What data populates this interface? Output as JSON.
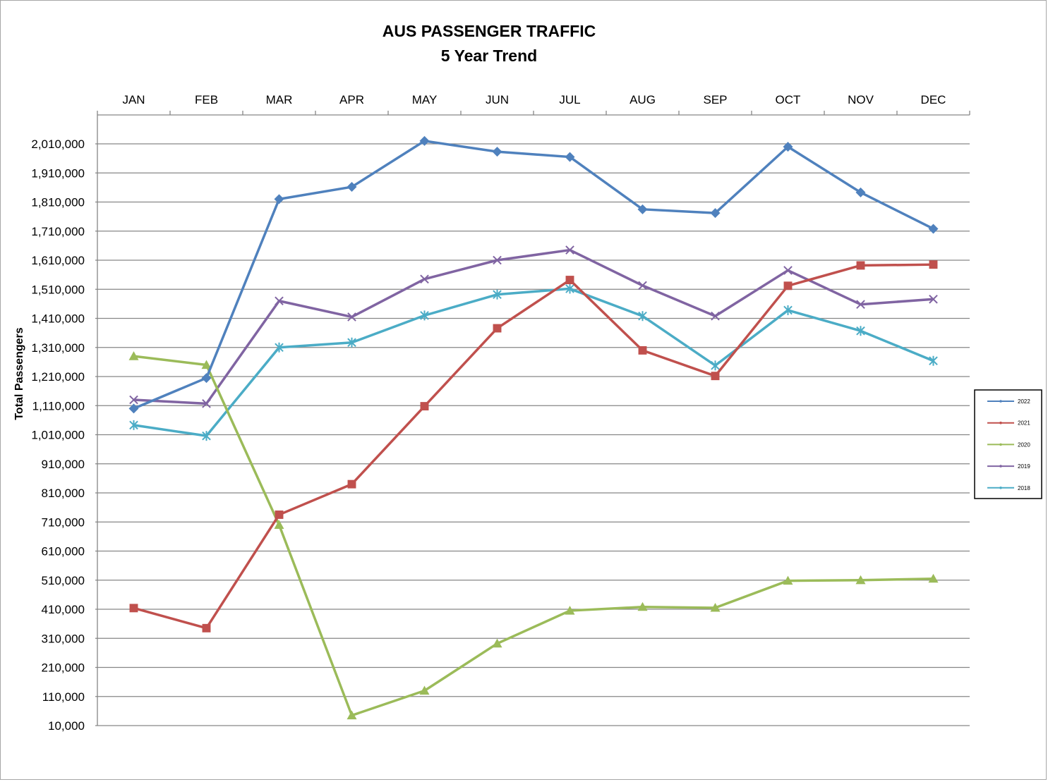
{
  "chart_data": {
    "type": "line",
    "title": "AUS PASSENGER TRAFFIC",
    "subtitle": "5 Year Trend",
    "ylabel": "Total Passengers",
    "xlabel": "",
    "categories": [
      "JAN",
      "FEB",
      "MAR",
      "APR",
      "MAY",
      "JUN",
      "JUL",
      "AUG",
      "SEP",
      "OCT",
      "NOV",
      "DEC"
    ],
    "ylim": [
      10000,
      2010000
    ],
    "ytick_step": 100000,
    "ytick_labels": [
      "10,000",
      "110,000",
      "210,000",
      "310,000",
      "410,000",
      "510,000",
      "610,000",
      "710,000",
      "810,000",
      "910,000",
      "1,010,000",
      "1,110,000",
      "1,210,000",
      "1,310,000",
      "1,410,000",
      "1,510,000",
      "1,610,000",
      "1,710,000",
      "1,810,000",
      "1,910,000",
      "2,010,000"
    ],
    "x_axis_position": "top",
    "grid": true,
    "legend_position": "right",
    "series": [
      {
        "name": "2022",
        "color": "#4f81bd",
        "marker": "diamond",
        "values": [
          1100000,
          1205000,
          1820000,
          1862000,
          2020000,
          1983000,
          1965000,
          1785000,
          1772000,
          2000000,
          1843000,
          1718000
        ]
      },
      {
        "name": "2021",
        "color": "#c0504d",
        "marker": "square",
        "values": [
          414000,
          345000,
          735000,
          840000,
          1108000,
          1376000,
          1542000,
          1300000,
          1212000,
          1522000,
          1592000,
          1595000
        ]
      },
      {
        "name": "2020",
        "color": "#9bbb59",
        "marker": "triangle",
        "values": [
          1280000,
          1250000,
          700000,
          45000,
          130000,
          292000,
          405000,
          418000,
          415000,
          508000,
          510000,
          515000
        ]
      },
      {
        "name": "2019",
        "color": "#8064a2",
        "marker": "x",
        "values": [
          1130000,
          1117000,
          1470000,
          1415000,
          1545000,
          1610000,
          1645000,
          1523000,
          1418000,
          1575000,
          1458000,
          1476000
        ]
      },
      {
        "name": "2018",
        "color": "#4bacc6",
        "marker": "star",
        "values": [
          1043000,
          1006000,
          1310000,
          1327000,
          1420000,
          1492000,
          1512000,
          1418000,
          1248000,
          1438000,
          1367000,
          1264000
        ]
      }
    ]
  }
}
